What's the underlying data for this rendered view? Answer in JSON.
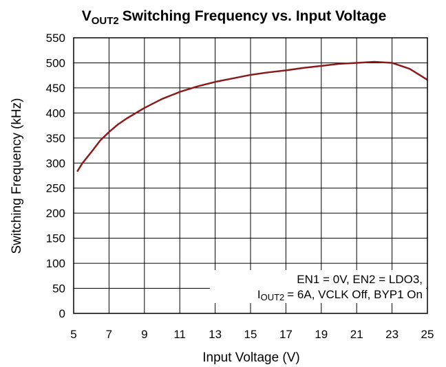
{
  "chart_data": {
    "type": "line",
    "title": {
      "main": "V",
      "sub": "OUT2",
      "rest": "Switching Frequency vs. Input Voltage"
    },
    "xlabel": "Input Voltage (V)",
    "ylabel": "Switching Frequency (kHz)",
    "annotation": {
      "line1": "EN1 = 0V, EN2 = LDO3,",
      "line2_main": "I",
      "line2_sub": "OUT2",
      "line2_rest": "= 6A, VCLK Off, BYP1 On"
    },
    "x": [
      5.2,
      5.5,
      6,
      6.5,
      7,
      7.5,
      8,
      9,
      10,
      11,
      12,
      13,
      14,
      15,
      16,
      17,
      18,
      19,
      20,
      21,
      22,
      23,
      24,
      25
    ],
    "series": [
      {
        "name": "VOUT2",
        "color": "#8b1a1a",
        "values": [
          283,
          300,
          322,
          345,
          362,
          377,
          389,
          410,
          428,
          442,
          453,
          462,
          469,
          476,
          481,
          485,
          490,
          494,
          498,
          500,
          502,
          500,
          488,
          466
        ]
      }
    ],
    "xlim": [
      5,
      25
    ],
    "xticks": [
      5,
      7,
      9,
      11,
      13,
      15,
      17,
      19,
      21,
      23,
      25
    ],
    "ylim": [
      0,
      550
    ],
    "yticks": [
      0,
      50,
      100,
      150,
      200,
      250,
      300,
      350,
      400,
      450,
      500,
      550
    ],
    "grid": true
  }
}
